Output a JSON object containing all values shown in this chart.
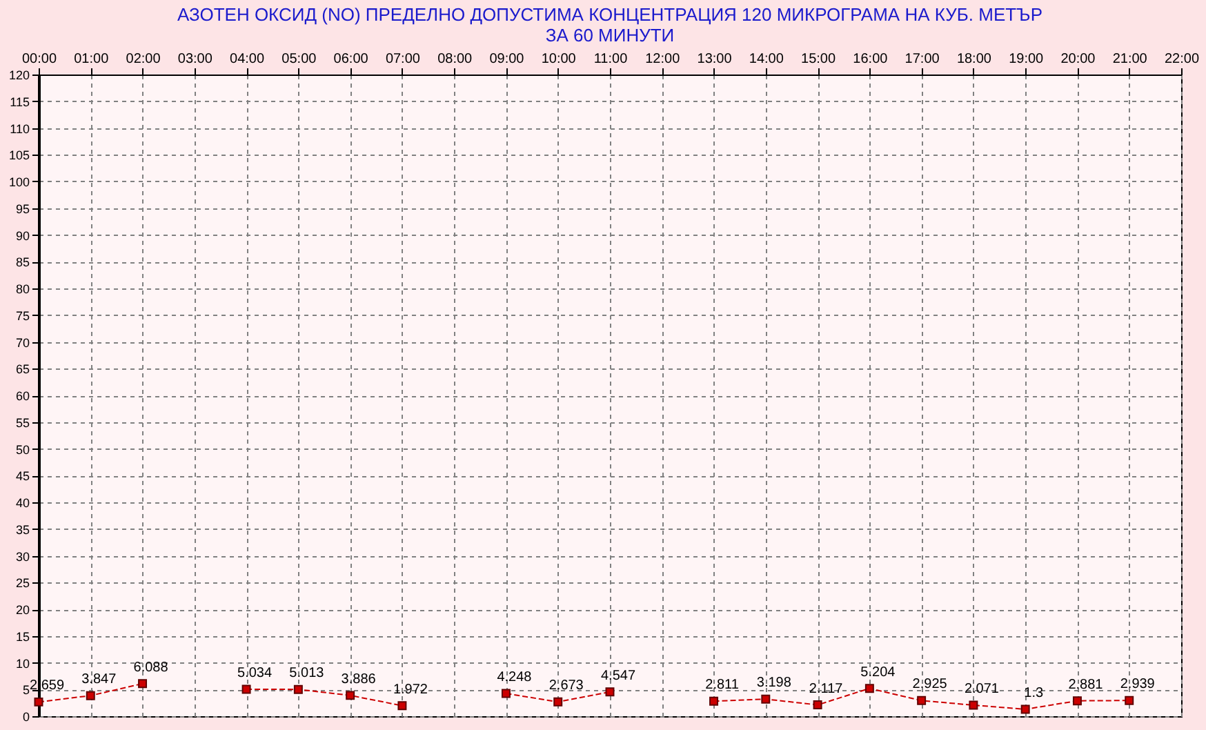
{
  "chart_data": {
    "type": "line",
    "title": [
      "АЗОТЕН ОКСИД   (NO)     ПРЕДЕЛНО ДОПУСТИМА КОНЦЕНТРАЦИЯ 120 МИКРОГРАМА  НА КУБ. МЕТЪР",
      "ЗА 60 МИНУТИ"
    ],
    "x": [
      0,
      1,
      2,
      3,
      4,
      5,
      6,
      7,
      8,
      9,
      10,
      11,
      12,
      13,
      14,
      15,
      16,
      17,
      18,
      19,
      20,
      21
    ],
    "series": [
      {
        "color": "#cc0000",
        "values": [
          2.659,
          3.847,
          6.088,
          null,
          5.034,
          5.013,
          3.886,
          1.972,
          null,
          4.248,
          2.673,
          4.547,
          null,
          2.811,
          3.198,
          2.117,
          5.204,
          2.925,
          2.071,
          1.3,
          2.881,
          2.939
        ]
      }
    ],
    "xlim": [
      0,
      22
    ],
    "xticks": [
      {
        "value": 0,
        "label": "00:00"
      },
      {
        "value": 1,
        "label": "01:00"
      },
      {
        "value": 2,
        "label": "02:00"
      },
      {
        "value": 3,
        "label": "03:00"
      },
      {
        "value": 4,
        "label": "04:00"
      },
      {
        "value": 5,
        "label": "05:00"
      },
      {
        "value": 6,
        "label": "06:00"
      },
      {
        "value": 7,
        "label": "07:00"
      },
      {
        "value": 8,
        "label": "08:00"
      },
      {
        "value": 9,
        "label": "09:00"
      },
      {
        "value": 10,
        "label": "10:00"
      },
      {
        "value": 11,
        "label": "11:00"
      },
      {
        "value": 12,
        "label": "12:00"
      },
      {
        "value": 13,
        "label": "13:00"
      },
      {
        "value": 14,
        "label": "14:00"
      },
      {
        "value": 15,
        "label": "15:00"
      },
      {
        "value": 16,
        "label": "16:00"
      },
      {
        "value": 17,
        "label": "17:00"
      },
      {
        "value": 18,
        "label": "18:00"
      },
      {
        "value": 19,
        "label": "19:00"
      },
      {
        "value": 20,
        "label": "20:00"
      },
      {
        "value": 21,
        "label": "21:00"
      },
      {
        "value": 22,
        "label": "22:00"
      }
    ],
    "ylim": [
      0,
      120
    ],
    "yticks": [
      0,
      5,
      10,
      15,
      20,
      25,
      30,
      35,
      40,
      45,
      50,
      55,
      60,
      65,
      70,
      75,
      80,
      85,
      90,
      95,
      100,
      105,
      110,
      115,
      120
    ],
    "grid": true,
    "marker": "square",
    "line_style": "dashed",
    "data_labels": true
  }
}
